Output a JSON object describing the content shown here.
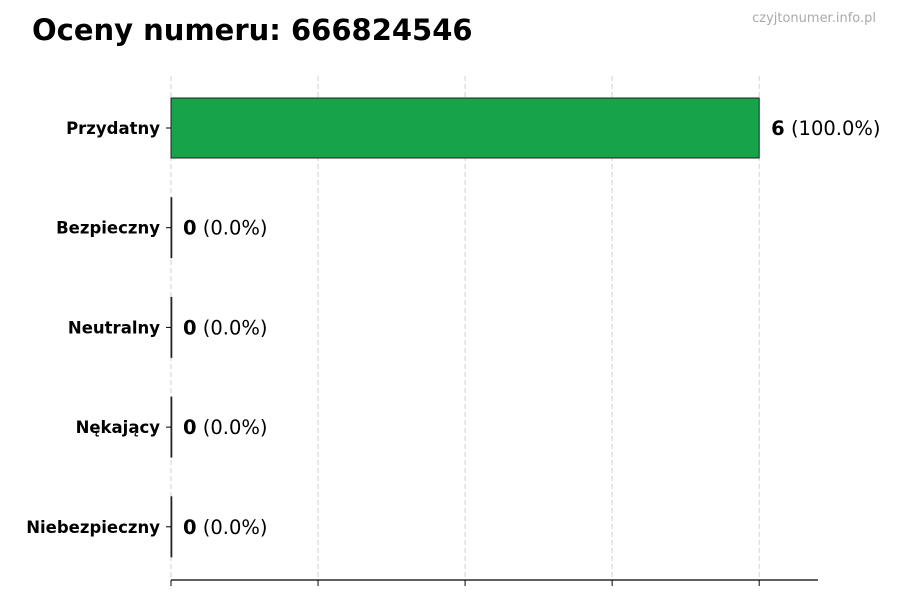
{
  "watermark": "czyjtonumer.info.pl",
  "chart_data": {
    "type": "bar",
    "orientation": "horizontal",
    "title": "Oceny numeru: 666824546",
    "categories": [
      "Przydatny",
      "Bezpieczny",
      "Neutralny",
      "Nękający",
      "Niebezpieczny"
    ],
    "values": [
      6,
      0,
      0,
      0,
      0
    ],
    "labels": [
      {
        "count": "6",
        "percent": "(100.0%)"
      },
      {
        "count": "0",
        "percent": "(0.0%)"
      },
      {
        "count": "0",
        "percent": "(0.0%)"
      },
      {
        "count": "0",
        "percent": "(0.0%)"
      },
      {
        "count": "0",
        "percent": "(0.0%)"
      }
    ],
    "colors": [
      "#16a34a",
      "#16a34a",
      "#9ca3af",
      "#f97316",
      "#dc2626"
    ],
    "xlim": [
      0,
      6.6
    ],
    "xticks": [
      0,
      1.5,
      3,
      4.5,
      6
    ],
    "xtick_labels_shown": false,
    "grid": "vertical dashed",
    "xlabel": "",
    "ylabel": ""
  }
}
